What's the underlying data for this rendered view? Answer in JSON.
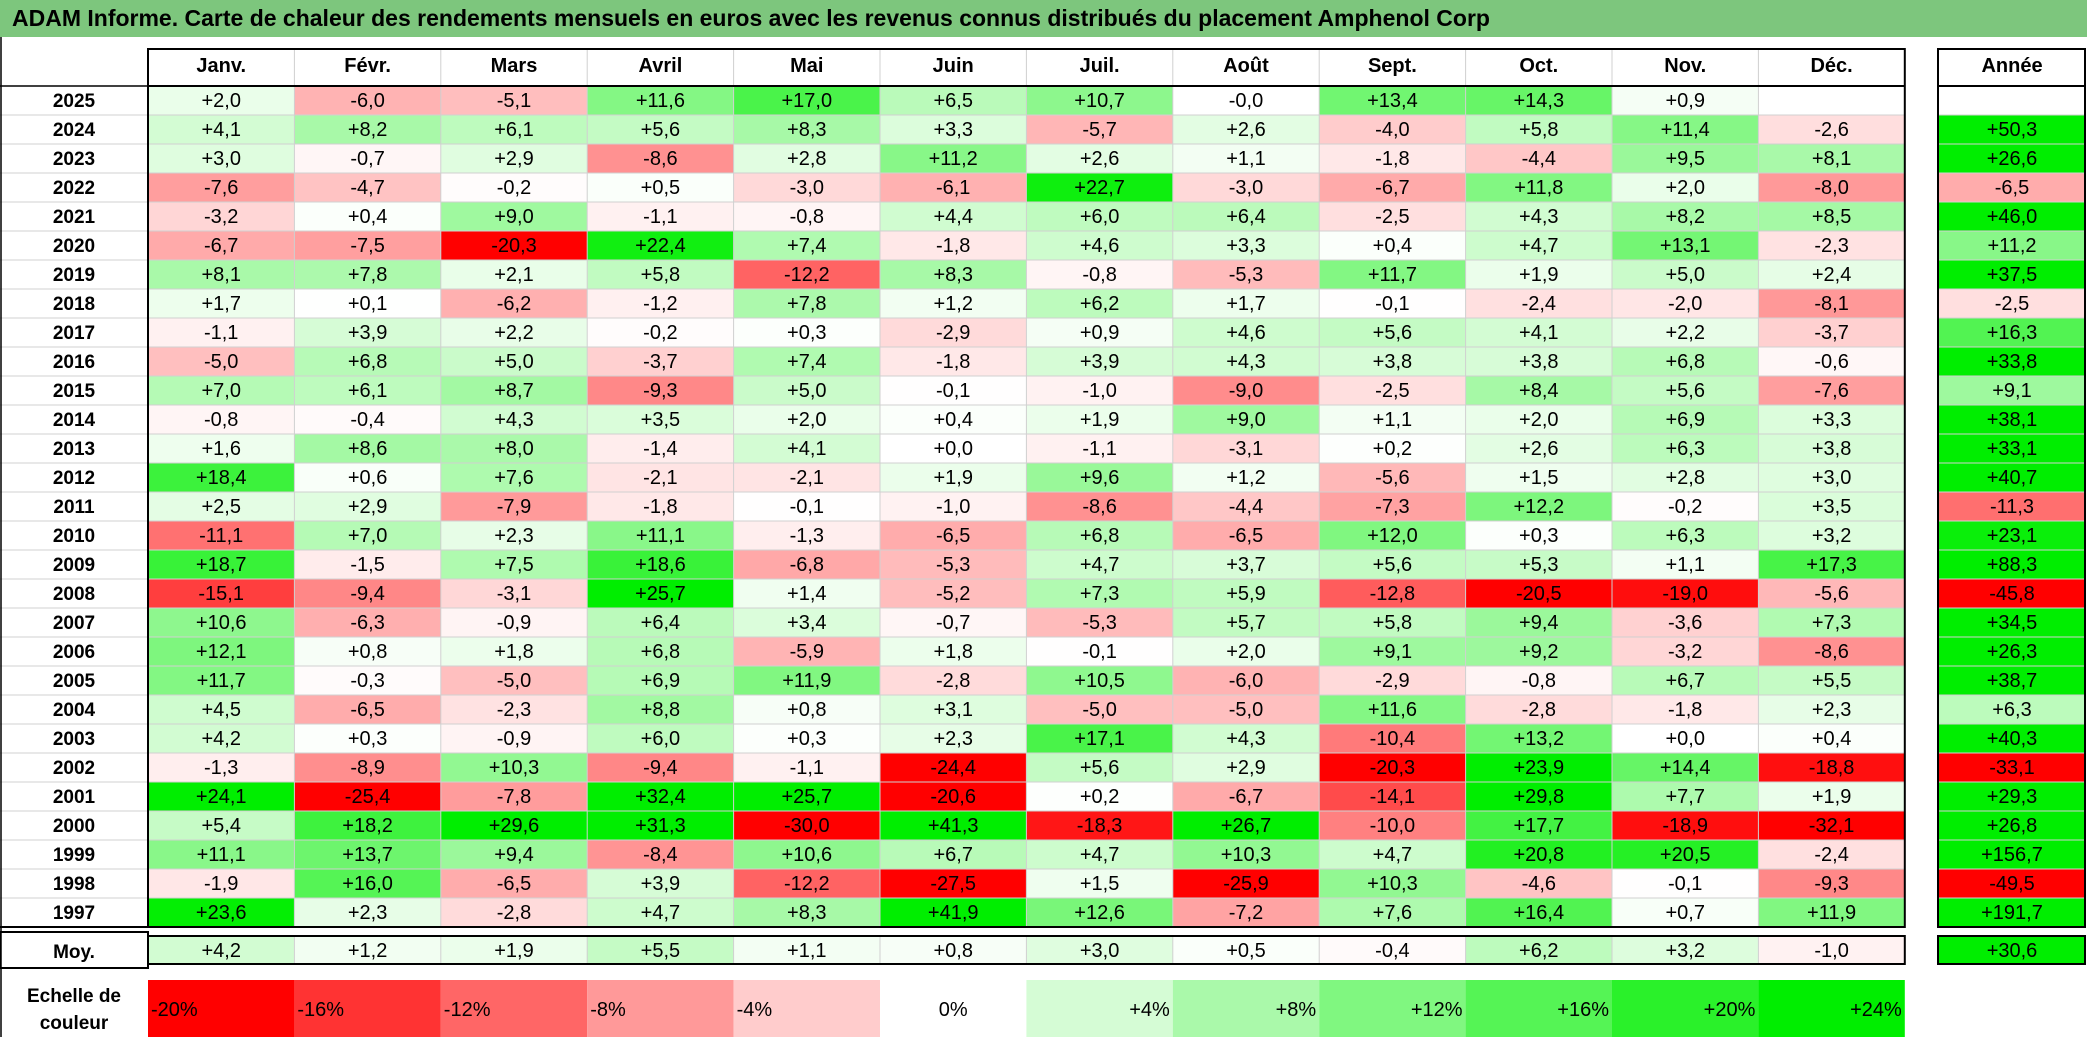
{
  "title": "ADAM Informe. Carte de chaleur des rendements mensuels en euros avec les revenus connus distribués du placement Amphenol Corp",
  "months": [
    "Janv.",
    "Févr.",
    "Mars",
    "Avril",
    "Mai",
    "Juin",
    "Juil.",
    "Août",
    "Sept.",
    "Oct.",
    "Nov.",
    "Déc."
  ],
  "year_header": "Année",
  "avg_label": "Moy.",
  "scale_label_line1": "Echelle de",
  "scale_label_line2": "couleur",
  "colors": {
    "negative_max": "#ff0000",
    "neutral": "#ffffff",
    "positive_max": "#00ee00",
    "title_bar": "#7dc67d"
  },
  "chart_data": {
    "type": "heatmap",
    "title": "ADAM Informe. Carte de chaleur des rendements mensuels en euros avec les revenus connus distribués du placement Amphenol Corp",
    "columns": [
      "Janv.",
      "Févr.",
      "Mars",
      "Avril",
      "Mai",
      "Juin",
      "Juil.",
      "Août",
      "Sept.",
      "Oct.",
      "Nov.",
      "Déc."
    ],
    "rows": [
      {
        "year": "2025",
        "months": [
          "+2,0",
          "-6,0",
          "-5,1",
          "+11,6",
          "+17,0",
          "+6,5",
          "+10,7",
          "-0,0",
          "+13,4",
          "+14,3",
          "+0,9",
          ""
        ],
        "annual": ""
      },
      {
        "year": "2024",
        "months": [
          "+4,1",
          "+8,2",
          "+6,1",
          "+5,6",
          "+8,3",
          "+3,3",
          "-5,7",
          "+2,6",
          "-4,0",
          "+5,8",
          "+11,4",
          "-2,6"
        ],
        "annual": "+50,3"
      },
      {
        "year": "2023",
        "months": [
          "+3,0",
          "-0,7",
          "+2,9",
          "-8,6",
          "+2,8",
          "+11,2",
          "+2,6",
          "+1,1",
          "-1,8",
          "-4,4",
          "+9,5",
          "+8,1"
        ],
        "annual": "+26,6"
      },
      {
        "year": "2022",
        "months": [
          "-7,6",
          "-4,7",
          "-0,2",
          "+0,5",
          "-3,0",
          "-6,1",
          "+22,7",
          "-3,0",
          "-6,7",
          "+11,8",
          "+2,0",
          "-8,0"
        ],
        "annual": "-6,5"
      },
      {
        "year": "2021",
        "months": [
          "-3,2",
          "+0,4",
          "+9,0",
          "-1,1",
          "-0,8",
          "+4,4",
          "+6,0",
          "+6,4",
          "-2,5",
          "+4,3",
          "+8,2",
          "+8,5"
        ],
        "annual": "+46,0"
      },
      {
        "year": "2020",
        "months": [
          "-6,7",
          "-7,5",
          "-20,3",
          "+22,4",
          "+7,4",
          "-1,8",
          "+4,6",
          "+3,3",
          "+0,4",
          "+4,7",
          "+13,1",
          "-2,3"
        ],
        "annual": "+11,2"
      },
      {
        "year": "2019",
        "months": [
          "+8,1",
          "+7,8",
          "+2,1",
          "+5,8",
          "-12,2",
          "+8,3",
          "-0,8",
          "-5,3",
          "+11,7",
          "+1,9",
          "+5,0",
          "+2,4"
        ],
        "annual": "+37,5"
      },
      {
        "year": "2018",
        "months": [
          "+1,7",
          "+0,1",
          "-6,2",
          "-1,2",
          "+7,8",
          "+1,2",
          "+6,2",
          "+1,7",
          "-0,1",
          "-2,4",
          "-2,0",
          "-8,1"
        ],
        "annual": "-2,5"
      },
      {
        "year": "2017",
        "months": [
          "-1,1",
          "+3,9",
          "+2,2",
          "-0,2",
          "+0,3",
          "-2,9",
          "+0,9",
          "+4,6",
          "+5,6",
          "+4,1",
          "+2,2",
          "-3,7"
        ],
        "annual": "+16,3"
      },
      {
        "year": "2016",
        "months": [
          "-5,0",
          "+6,8",
          "+5,0",
          "-3,7",
          "+7,4",
          "-1,8",
          "+3,9",
          "+4,3",
          "+3,8",
          "+3,8",
          "+6,8",
          "-0,6"
        ],
        "annual": "+33,8"
      },
      {
        "year": "2015",
        "months": [
          "+7,0",
          "+6,1",
          "+8,7",
          "-9,3",
          "+5,0",
          "-0,1",
          "-1,0",
          "-9,0",
          "-2,5",
          "+8,4",
          "+5,6",
          "-7,6"
        ],
        "annual": "+9,1"
      },
      {
        "year": "2014",
        "months": [
          "-0,8",
          "-0,4",
          "+4,3",
          "+3,5",
          "+2,0",
          "+0,4",
          "+1,9",
          "+9,0",
          "+1,1",
          "+2,0",
          "+6,9",
          "+3,3"
        ],
        "annual": "+38,1"
      },
      {
        "year": "2013",
        "months": [
          "+1,6",
          "+8,6",
          "+8,0",
          "-1,4",
          "+4,1",
          "+0,0",
          "-1,1",
          "-3,1",
          "+0,2",
          "+2,6",
          "+6,3",
          "+3,8"
        ],
        "annual": "+33,1"
      },
      {
        "year": "2012",
        "months": [
          "+18,4",
          "+0,6",
          "+7,6",
          "-2,1",
          "-2,1",
          "+1,9",
          "+9,6",
          "+1,2",
          "-5,6",
          "+1,5",
          "+2,8",
          "+3,0"
        ],
        "annual": "+40,7"
      },
      {
        "year": "2011",
        "months": [
          "+2,5",
          "+2,9",
          "-7,9",
          "-1,8",
          "-0,1",
          "-1,0",
          "-8,6",
          "-4,4",
          "-7,3",
          "+12,2",
          "-0,2",
          "+3,5"
        ],
        "annual": "-11,3"
      },
      {
        "year": "2010",
        "months": [
          "-11,1",
          "+7,0",
          "+2,3",
          "+11,1",
          "-1,3",
          "-6,5",
          "+6,8",
          "-6,5",
          "+12,0",
          "+0,3",
          "+6,3",
          "+3,2"
        ],
        "annual": "+23,1"
      },
      {
        "year": "2009",
        "months": [
          "+18,7",
          "-1,5",
          "+7,5",
          "+18,6",
          "-6,8",
          "-5,3",
          "+4,7",
          "+3,7",
          "+5,6",
          "+5,3",
          "+1,1",
          "+17,3"
        ],
        "annual": "+88,3"
      },
      {
        "year": "2008",
        "months": [
          "-15,1",
          "-9,4",
          "-3,1",
          "+25,7",
          "+1,4",
          "-5,2",
          "+7,3",
          "+5,9",
          "-12,8",
          "-20,5",
          "-19,0",
          "-5,6"
        ],
        "annual": "-45,8"
      },
      {
        "year": "2007",
        "months": [
          "+10,6",
          "-6,3",
          "-0,9",
          "+6,4",
          "+3,4",
          "-0,7",
          "-5,3",
          "+5,7",
          "+5,8",
          "+9,4",
          "-3,6",
          "+7,3"
        ],
        "annual": "+34,5"
      },
      {
        "year": "2006",
        "months": [
          "+12,1",
          "+0,8",
          "+1,8",
          "+6,8",
          "-5,9",
          "+1,8",
          "-0,1",
          "+2,0",
          "+9,1",
          "+9,2",
          "-3,2",
          "-8,6"
        ],
        "annual": "+26,3"
      },
      {
        "year": "2005",
        "months": [
          "+11,7",
          "-0,3",
          "-5,0",
          "+6,9",
          "+11,9",
          "-2,8",
          "+10,5",
          "-6,0",
          "-2,9",
          "-0,8",
          "+6,7",
          "+5,5"
        ],
        "annual": "+38,7"
      },
      {
        "year": "2004",
        "months": [
          "+4,5",
          "-6,5",
          "-2,3",
          "+8,8",
          "+0,8",
          "+3,1",
          "-5,0",
          "-5,0",
          "+11,6",
          "-2,8",
          "-1,8",
          "+2,3"
        ],
        "annual": "+6,3"
      },
      {
        "year": "2003",
        "months": [
          "+4,2",
          "+0,3",
          "-0,9",
          "+6,0",
          "+0,3",
          "+2,3",
          "+17,1",
          "+4,3",
          "-10,4",
          "+13,2",
          "+0,0",
          "+0,4"
        ],
        "annual": "+40,3"
      },
      {
        "year": "2002",
        "months": [
          "-1,3",
          "-8,9",
          "+10,3",
          "-9,4",
          "-1,1",
          "-24,4",
          "+5,6",
          "+2,9",
          "-20,3",
          "+23,9",
          "+14,4",
          "-18,8"
        ],
        "annual": "-33,1"
      },
      {
        "year": "2001",
        "months": [
          "+24,1",
          "-25,4",
          "-7,8",
          "+32,4",
          "+25,7",
          "-20,6",
          "+0,2",
          "-6,7",
          "-14,1",
          "+29,8",
          "+7,7",
          "+1,9"
        ],
        "annual": "+29,3"
      },
      {
        "year": "2000",
        "months": [
          "+5,4",
          "+18,2",
          "+29,6",
          "+31,3",
          "-30,0",
          "+41,3",
          "-18,3",
          "+26,7",
          "-10,0",
          "+17,7",
          "-18,9",
          "-32,1"
        ],
        "annual": "+26,8"
      },
      {
        "year": "1999",
        "months": [
          "+11,1",
          "+13,7",
          "+9,4",
          "-8,4",
          "+10,6",
          "+6,7",
          "+4,7",
          "+10,3",
          "+4,7",
          "+20,8",
          "+20,5",
          "-2,4"
        ],
        "annual": "+156,7"
      },
      {
        "year": "1998",
        "months": [
          "-1,9",
          "+16,0",
          "-6,5",
          "+3,9",
          "-12,2",
          "-27,5",
          "+1,5",
          "-25,9",
          "+10,3",
          "-4,6",
          "-0,1",
          "-9,3"
        ],
        "annual": "-49,5"
      },
      {
        "year": "1997",
        "months": [
          "+23,6",
          "+2,3",
          "-2,8",
          "+4,7",
          "+8,3",
          "+41,9",
          "+12,6",
          "-7,2",
          "+7,6",
          "+16,4",
          "+0,7",
          "+11,9"
        ],
        "annual": "+191,7"
      }
    ],
    "average": {
      "label": "Moy.",
      "months": [
        "+4,2",
        "+1,2",
        "+1,9",
        "+5,5",
        "+1,1",
        "+0,8",
        "+3,0",
        "+0,5",
        "-0,4",
        "+6,2",
        "+3,2",
        "-1,0"
      ],
      "annual": "+30,6"
    },
    "scale": {
      "labels": [
        "-20%",
        "-16%",
        "-12%",
        "-8%",
        "-4%",
        "0%",
        "+4%",
        "+8%",
        "+12%",
        "+16%",
        "+20%",
        "+24%"
      ],
      "values": [
        -20,
        -16,
        -12,
        -8,
        -4,
        0,
        4,
        8,
        12,
        16,
        20,
        24
      ]
    },
    "color_range": [
      -20,
      24
    ]
  }
}
